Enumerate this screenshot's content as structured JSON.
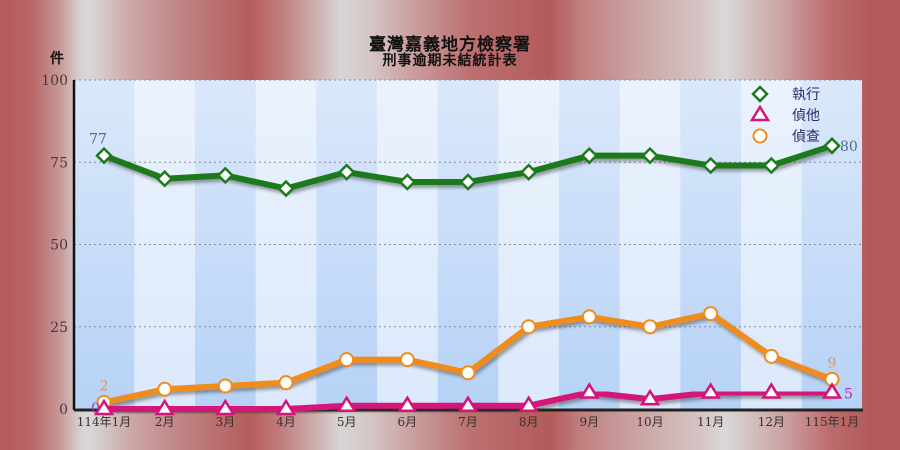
{
  "title": "臺灣嘉義地方檢察署",
  "subtitle": "刑事逾期未結統計表",
  "unit_label": "件",
  "colors": {
    "執行": "#1e7a1e",
    "偵他": "#d4147a",
    "偵查": "#f08c1e",
    "plot_bg_light": "#e2eefc",
    "plot_bg_dark": "#bcd6f6",
    "frame_bg": "#b45a5a"
  },
  "legend": [
    {
      "name": "執行",
      "marker": "diamond",
      "color": "#1e7a1e"
    },
    {
      "name": "偵他",
      "marker": "triangle",
      "color": "#d4147a"
    },
    {
      "name": "偵查",
      "marker": "circle",
      "color": "#f08c1e"
    }
  ],
  "chart_data": {
    "type": "line",
    "title": "臺灣嘉義地方檢察署",
    "subtitle": "刑事逾期未結統計表",
    "xlabel": "",
    "ylabel": "件",
    "ylim": [
      0,
      100
    ],
    "yticks": [
      0,
      25,
      50,
      75,
      100
    ],
    "grid": "horizontal dotted",
    "legend_position": "top-right inside",
    "categories": [
      "114年1月",
      "2月",
      "3月",
      "4月",
      "5月",
      "6月",
      "7月",
      "8月",
      "9月",
      "10月",
      "11月",
      "12月",
      "115年1月"
    ],
    "series": [
      {
        "name": "執行",
        "marker": "diamond",
        "values": [
          77,
          70,
          71,
          67,
          72,
          69,
          69,
          72,
          77,
          77,
          74,
          74,
          80
        ]
      },
      {
        "name": "偵他",
        "marker": "triangle",
        "values": [
          0,
          0,
          0,
          0,
          1,
          1,
          1,
          1,
          5,
          3,
          5,
          5,
          5
        ]
      },
      {
        "name": "偵查",
        "marker": "circle",
        "values": [
          2,
          6,
          7,
          8,
          15,
          15,
          11,
          25,
          28,
          25,
          29,
          16,
          9
        ]
      }
    ],
    "annotations": [
      {
        "series": "執行",
        "index": 0,
        "text": "77"
      },
      {
        "series": "執行",
        "index": 12,
        "text": "80"
      },
      {
        "series": "偵他",
        "index": 0,
        "text": "0"
      },
      {
        "series": "偵他",
        "index": 12,
        "text": "5"
      },
      {
        "series": "偵查",
        "index": 0,
        "text": "2"
      },
      {
        "series": "偵查",
        "index": 12,
        "text": "9"
      }
    ]
  }
}
